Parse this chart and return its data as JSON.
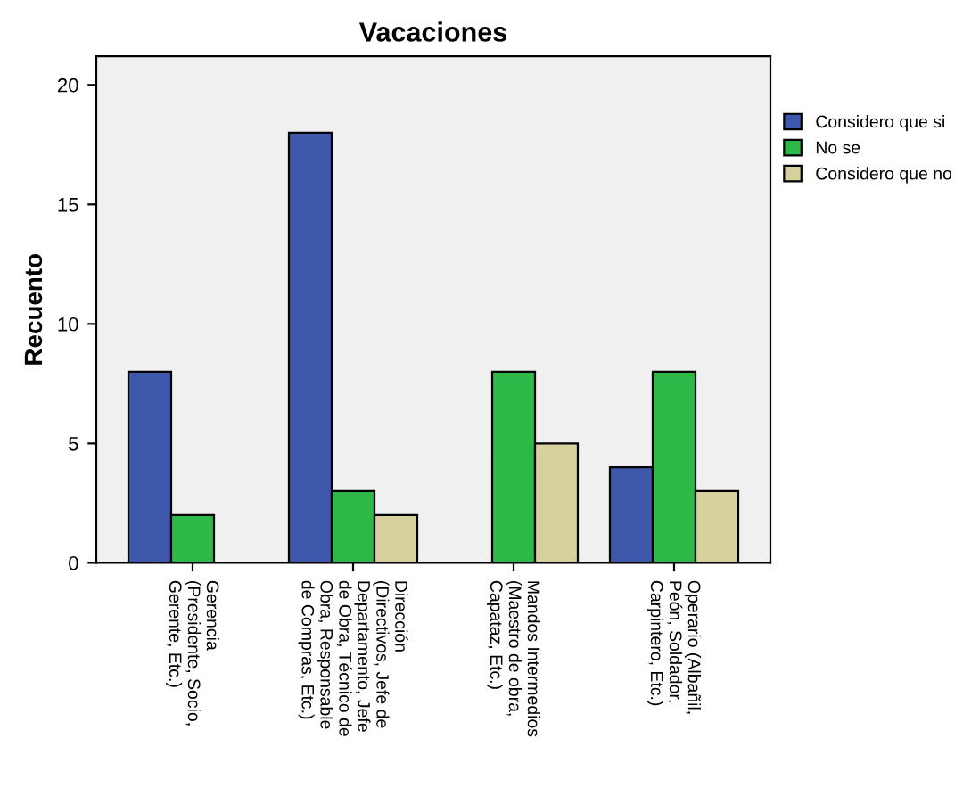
{
  "chart_data": {
    "type": "bar",
    "title": "Vacaciones",
    "ylabel": "Recuento",
    "categories": [
      "Gerencia\n(Presidente, Socio,\nGerente, Etc.)",
      "Dirección\n(Directivos, Jefe de\nDepartamento, Jefe\nde Obra, Técnico de\nObra, Responsable\nde Compras, Etc.)",
      "Mandos Intermedios\n(Maestro de obra,\nCapataz, Etc.)",
      "Operario (Albañil,\nPeón, Soldador,\nCarpintero, Etc.)"
    ],
    "series": [
      {
        "name": "Considero que si",
        "color": "#3e58ac",
        "values": [
          8,
          18,
          null,
          4
        ]
      },
      {
        "name": "No se",
        "color": "#2eb848",
        "values": [
          2,
          3,
          8,
          8
        ]
      },
      {
        "name": "Considero que no",
        "color": "#d6d09c",
        "values": [
          null,
          2,
          5,
          3
        ]
      }
    ],
    "ylim": [
      0,
      21.2
    ],
    "yticks": [
      0,
      5,
      10,
      15,
      20
    ],
    "grid": false,
    "legend": "top right"
  }
}
